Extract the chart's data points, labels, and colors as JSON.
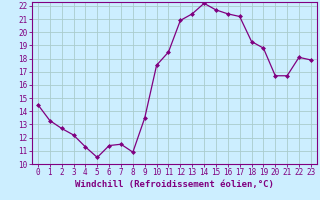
{
  "x": [
    0,
    1,
    2,
    3,
    4,
    5,
    6,
    7,
    8,
    9,
    10,
    11,
    12,
    13,
    14,
    15,
    16,
    17,
    18,
    19,
    20,
    21,
    22,
    23
  ],
  "y": [
    14.5,
    13.3,
    12.7,
    12.2,
    11.3,
    10.5,
    11.4,
    11.5,
    10.9,
    13.5,
    17.5,
    18.5,
    20.9,
    21.4,
    22.2,
    21.7,
    21.4,
    21.2,
    19.3,
    18.8,
    16.7,
    16.7,
    18.1,
    17.9
  ],
  "line_color": "#800080",
  "marker": "D",
  "marker_size": 2.0,
  "bg_color": "#cceeff",
  "grid_color": "#aacccc",
  "xlabel": "Windchill (Refroidissement éolien,°C)",
  "ylim": [
    10,
    22
  ],
  "xlim_min": -0.5,
  "xlim_max": 23.5,
  "yticks": [
    10,
    11,
    12,
    13,
    14,
    15,
    16,
    17,
    18,
    19,
    20,
    21,
    22
  ],
  "xticks": [
    0,
    1,
    2,
    3,
    4,
    5,
    6,
    7,
    8,
    9,
    10,
    11,
    12,
    13,
    14,
    15,
    16,
    17,
    18,
    19,
    20,
    21,
    22,
    23
  ],
  "tick_color": "#800080",
  "label_fontsize": 6.5,
  "tick_fontsize": 5.5,
  "linewidth": 0.9
}
